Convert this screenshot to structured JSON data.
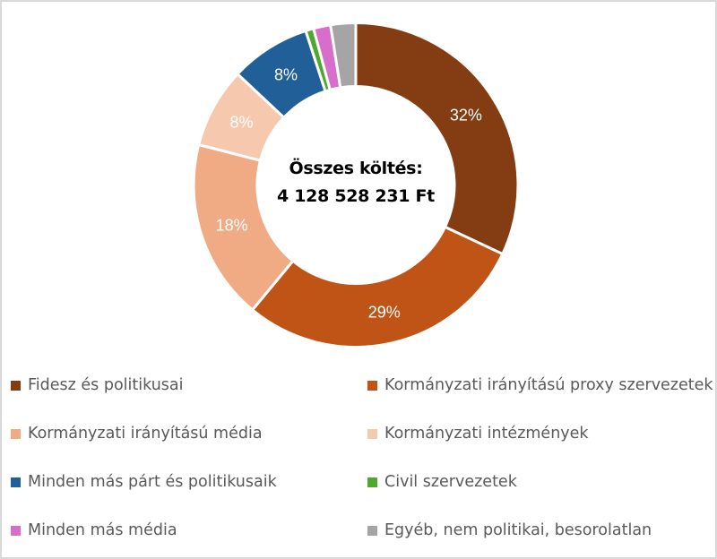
{
  "chart_data": {
    "type": "pie",
    "variant": "donut",
    "title": "",
    "center_label": {
      "line1": "Összes költés:",
      "line2": "4 128 528 231 Ft"
    },
    "categories": [
      "Fidesz és politikusai",
      "Kormányzati irányítású proxy szervezetek",
      "Kormányzati irányítású média",
      "Kormányzati intézmények",
      "Minden más párt és politikusaik",
      "Civil szervezetek",
      "Minden más média",
      "Egyéb, nem politikai, besorolatlan"
    ],
    "values": [
      32,
      29,
      18,
      8,
      8,
      0.8,
      1.7,
      2.5
    ],
    "data_labels": [
      "32%",
      "29%",
      "18%",
      "8%",
      "8%",
      "",
      "",
      ""
    ],
    "colors": [
      "#843C12",
      "#C05416",
      "#F0AB85",
      "#F6C9AF",
      "#215F99",
      "#4EA72E",
      "#D86ECC",
      "#A5A5A5"
    ],
    "legend_position": "bottom",
    "start_angle_deg": 0,
    "direction": "clockwise"
  },
  "legend": {
    "items": [
      {
        "label": "Fidesz és politikusai",
        "color": "#843C12"
      },
      {
        "label": "Kormányzati irányítású proxy szervezetek",
        "color": "#C05416"
      },
      {
        "label": "Kormányzati irányítású média",
        "color": "#F0AB85"
      },
      {
        "label": "Kormányzati intézmények",
        "color": "#F6C9AF"
      },
      {
        "label": "Minden más párt és politikusaik",
        "color": "#215F99"
      },
      {
        "label": "Civil szervezetek",
        "color": "#4EA72E"
      },
      {
        "label": "Minden más média",
        "color": "#D86ECC"
      },
      {
        "label": "Egyéb, nem politikai, besorolatlan",
        "color": "#A5A5A5"
      }
    ]
  }
}
